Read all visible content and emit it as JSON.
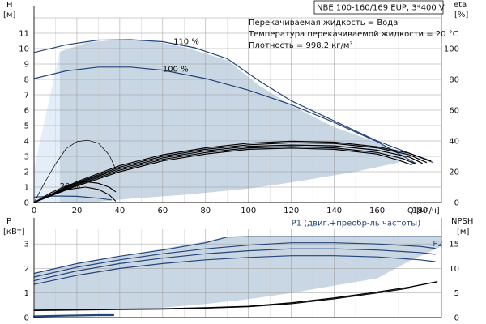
{
  "header": {
    "title": "NBE 100-160/169 EUP, 3*400 V"
  },
  "info": [
    "Перекачиваемая жидкость = Вода",
    "Температура перекачиваемой жидкости = 20 °C",
    "Плотность = 998.2 кг/м³"
  ],
  "colors": {
    "curve": "#24457a",
    "band": "#c9d6e3",
    "light": "#e4eef8",
    "black": "#000000"
  },
  "chart_data": [
    {
      "id": "head",
      "type": "line",
      "xlabel": "Q [м³/ч]",
      "ylabel_name": "H",
      "ylabel_unit": "[м]",
      "y2label_name": "eta",
      "y2label_unit": "[%]",
      "xlim": [
        0,
        190
      ],
      "ylim": [
        0,
        12
      ],
      "y2lim": [
        0,
        120
      ],
      "xticks": [
        0,
        20,
        40,
        60,
        80,
        100,
        120,
        140,
        160,
        180
      ],
      "yticks": [
        0,
        1,
        2,
        3,
        4,
        5,
        6,
        7,
        8,
        9,
        10,
        11
      ],
      "y2ticks": [
        0,
        20,
        40,
        60,
        80,
        100
      ],
      "grid": true,
      "annotations": [
        {
          "text": "110 %",
          "x": 65,
          "y": 10.3
        },
        {
          "text": "100 %",
          "x": 60,
          "y": 8.5
        },
        {
          "text": "20 %",
          "x": 12,
          "y": 0.9
        }
      ],
      "operating_area": [
        [
          12,
          0
        ],
        [
          12,
          2.2
        ],
        [
          12,
          9.8
        ],
        [
          25,
          10.4
        ],
        [
          40,
          10.58
        ],
        [
          55,
          10.5
        ],
        [
          70,
          10.1
        ],
        [
          90,
          9.25
        ],
        [
          105,
          7.6
        ],
        [
          120,
          6.3
        ],
        [
          140,
          4.9
        ],
        [
          160,
          3.9
        ],
        [
          175,
          3.1
        ],
        [
          170,
          2.6
        ],
        [
          150,
          2.0
        ],
        [
          120,
          1.3
        ],
        [
          100,
          0.9
        ],
        [
          70,
          0.5
        ],
        [
          45,
          0.25
        ],
        [
          30,
          0.05
        ],
        [
          12,
          0
        ]
      ],
      "light_area": [
        [
          0,
          0
        ],
        [
          0,
          2.2
        ],
        [
          10,
          8.5
        ],
        [
          12,
          9.8
        ],
        [
          12,
          0
        ]
      ],
      "series": [
        {
          "name": "110 %",
          "color": "#24457a",
          "points": [
            [
              0,
              9.75
            ],
            [
              15,
              10.25
            ],
            [
              30,
              10.55
            ],
            [
              45,
              10.58
            ],
            [
              60,
              10.45
            ],
            [
              75,
              10.05
            ],
            [
              90,
              9.35
            ],
            [
              105,
              7.9
            ],
            [
              120,
              6.6
            ],
            [
              140,
              5.3
            ],
            [
              160,
              4.0
            ],
            [
              175,
              3.2
            ],
            [
              186,
              2.6
            ]
          ]
        },
        {
          "name": "100 %",
          "color": "#24457a",
          "points": [
            [
              0,
              8.05
            ],
            [
              15,
              8.55
            ],
            [
              30,
              8.8
            ],
            [
              45,
              8.8
            ],
            [
              60,
              8.6
            ],
            [
              80,
              8.05
            ],
            [
              100,
              7.3
            ],
            [
              120,
              6.35
            ],
            [
              140,
              5.2
            ],
            [
              160,
              3.95
            ],
            [
              178,
              2.55
            ]
          ]
        },
        {
          "name": "20 %",
          "color": "#24457a",
          "points": [
            [
              0,
              0.35
            ],
            [
              10,
              0.42
            ],
            [
              20,
              0.4
            ],
            [
              30,
              0.28
            ],
            [
              36,
              0.17
            ]
          ]
        },
        {
          "name": "eff-1",
          "color": "#000000",
          "axis": "y2",
          "points": [
            [
              0,
              0
            ],
            [
              20,
              13.5
            ],
            [
              40,
              24
            ],
            [
              60,
              31
            ],
            [
              80,
              35.5
            ],
            [
              100,
              38.5
            ],
            [
              120,
              39.8
            ],
            [
              140,
              39.2
            ],
            [
              160,
              36.2
            ],
            [
              175,
              32
            ],
            [
              185,
              27
            ]
          ]
        },
        {
          "name": "eff-2",
          "color": "#000000",
          "axis": "y2",
          "points": [
            [
              0,
              0
            ],
            [
              20,
              12.8
            ],
            [
              40,
              23
            ],
            [
              60,
              30
            ],
            [
              80,
              34.5
            ],
            [
              100,
              37.5
            ],
            [
              120,
              38.8
            ],
            [
              140,
              38.3
            ],
            [
              160,
              35.5
            ],
            [
              175,
              31
            ],
            [
              183,
              26
            ]
          ]
        },
        {
          "name": "eff-3",
          "color": "#000000",
          "axis": "y2",
          "points": [
            [
              0,
              0
            ],
            [
              20,
              12.2
            ],
            [
              40,
              22
            ],
            [
              60,
              29
            ],
            [
              80,
              33.5
            ],
            [
              100,
              36.5
            ],
            [
              120,
              37.3
            ],
            [
              140,
              36.8
            ],
            [
              160,
              34
            ],
            [
              175,
              29.5
            ],
            [
              181,
              25.5
            ]
          ]
        },
        {
          "name": "eff-4",
          "color": "#000000",
          "axis": "y2",
          "points": [
            [
              0,
              0
            ],
            [
              20,
              11.5
            ],
            [
              40,
              21
            ],
            [
              60,
              28
            ],
            [
              80,
              32.5
            ],
            [
              100,
              35.5
            ],
            [
              120,
              36.3
            ],
            [
              140,
              35.5
            ],
            [
              160,
              32.5
            ],
            [
              172,
              28.5
            ],
            [
              178,
              25
            ]
          ]
        },
        {
          "name": "eff-5",
          "color": "#000000",
          "axis": "y2",
          "points": [
            [
              0,
              0
            ],
            [
              20,
              10.8
            ],
            [
              40,
              20
            ],
            [
              60,
              27
            ],
            [
              80,
              31.5
            ],
            [
              100,
              34.5
            ],
            [
              120,
              35.3
            ],
            [
              140,
              34.5
            ],
            [
              160,
              31.5
            ],
            [
              170,
              27.5
            ],
            [
              176,
              24.5
            ]
          ]
        },
        {
          "name": "eff-low-1",
          "color": "#000000",
          "axis": "y2",
          "width": 0.7,
          "points": [
            [
              0,
              0
            ],
            [
              5,
              13
            ],
            [
              10,
              25
            ],
            [
              15,
              35
            ],
            [
              20,
              39.5
            ],
            [
              25,
              40.5
            ],
            [
              30,
              38.5
            ],
            [
              35,
              31
            ],
            [
              38,
              22
            ]
          ]
        },
        {
          "name": "eff-low-2",
          "color": "#000000",
          "axis": "y2",
          "width": 1.1,
          "points": [
            [
              0,
              0
            ],
            [
              8,
              6.5
            ],
            [
              16,
              11.5
            ],
            [
              24,
              13.5
            ],
            [
              30,
              12.5
            ],
            [
              35,
              10
            ],
            [
              38,
              7
            ]
          ]
        },
        {
          "name": "eff-low-3",
          "color": "#000000",
          "axis": "y2",
          "width": 1.1,
          "points": [
            [
              0,
              0
            ],
            [
              8,
              5
            ],
            [
              16,
              8.5
            ],
            [
              24,
              10
            ],
            [
              30,
              8.5
            ],
            [
              35,
              5
            ],
            [
              38,
              1
            ]
          ]
        }
      ]
    },
    {
      "id": "power",
      "type": "line",
      "ylabel_name": "P",
      "ylabel_unit": "[кВт]",
      "y2label_name": "NPSH",
      "y2label_unit": "[м]",
      "xlim": [
        0,
        190
      ],
      "ylim": [
        0,
        3.6
      ],
      "y2lim": [
        0,
        18
      ],
      "yticks": [
        0,
        1,
        2,
        3
      ],
      "y2ticks": [
        0,
        5,
        10,
        15
      ],
      "grid": true,
      "annotations": [
        {
          "text": "P1 (двиг.+преобр-ль частоты)",
          "x": 120,
          "y": 3.75
        },
        {
          "text": "P2",
          "x": 186,
          "y": 2.9
        }
      ],
      "operating_area": [
        [
          0,
          1.8
        ],
        [
          20,
          2.2
        ],
        [
          40,
          2.5
        ],
        [
          60,
          2.8
        ],
        [
          80,
          3.1
        ],
        [
          90,
          3.3
        ],
        [
          190,
          3.3
        ],
        [
          190,
          2.9
        ],
        [
          175,
          2.3
        ],
        [
          160,
          1.6
        ],
        [
          140,
          1.3
        ],
        [
          120,
          1.0
        ],
        [
          100,
          0.75
        ],
        [
          80,
          0.55
        ],
        [
          60,
          0.4
        ],
        [
          40,
          0.32
        ],
        [
          20,
          0.3
        ],
        [
          0,
          0.3
        ]
      ],
      "series": [
        {
          "name": "P1 (двиг.+преобр-ль частоты)",
          "color": "#24457a",
          "points": [
            [
              0,
              1.8
            ],
            [
              20,
              2.2
            ],
            [
              40,
              2.5
            ],
            [
              60,
              2.75
            ],
            [
              80,
              3.05
            ],
            [
              90,
              3.28
            ],
            [
              100,
              3.3
            ],
            [
              140,
              3.3
            ],
            [
              190,
              3.3
            ]
          ]
        },
        {
          "name": "P1-b",
          "color": "#24457a",
          "points": [
            [
              0,
              1.65
            ],
            [
              20,
              2.05
            ],
            [
              40,
              2.35
            ],
            [
              60,
              2.6
            ],
            [
              80,
              2.8
            ],
            [
              100,
              2.95
            ],
            [
              120,
              3.05
            ],
            [
              140,
              3.05
            ],
            [
              160,
              3.0
            ],
            [
              180,
              2.9
            ],
            [
              187,
              2.82
            ]
          ]
        },
        {
          "name": "P2",
          "color": "#24457a",
          "points": [
            [
              0,
              1.5
            ],
            [
              20,
              1.9
            ],
            [
              40,
              2.2
            ],
            [
              60,
              2.42
            ],
            [
              80,
              2.6
            ],
            [
              100,
              2.72
            ],
            [
              120,
              2.8
            ],
            [
              140,
              2.8
            ],
            [
              160,
              2.75
            ],
            [
              180,
              2.65
            ],
            [
              187,
              2.58
            ]
          ]
        },
        {
          "name": "P2-b",
          "color": "#24457a",
          "points": [
            [
              0,
              1.35
            ],
            [
              20,
              1.72
            ],
            [
              40,
              2.0
            ],
            [
              60,
              2.2
            ],
            [
              80,
              2.35
            ],
            [
              100,
              2.45
            ],
            [
              120,
              2.52
            ],
            [
              140,
              2.52
            ],
            [
              160,
              2.47
            ],
            [
              180,
              2.35
            ],
            [
              187,
              2.28
            ]
          ]
        },
        {
          "name": "NPSH-1",
          "color": "#000000",
          "axis": "y2",
          "width": 1.3,
          "points": [
            [
              0,
              1.5
            ],
            [
              20,
              1.6
            ],
            [
              40,
              1.7
            ],
            [
              60,
              1.8
            ],
            [
              80,
              2.0
            ],
            [
              100,
              2.3
            ],
            [
              120,
              3.0
            ],
            [
              140,
              4.0
            ],
            [
              160,
              5.2
            ],
            [
              175,
              6.2
            ],
            [
              188,
              7.3
            ]
          ]
        },
        {
          "name": "NPSH-2",
          "color": "#000000",
          "axis": "y2",
          "width": 1.0,
          "points": [
            [
              0,
              1.4
            ],
            [
              20,
              1.5
            ],
            [
              40,
              1.6
            ],
            [
              60,
              1.7
            ],
            [
              80,
              1.9
            ],
            [
              100,
              2.2
            ],
            [
              120,
              2.8
            ],
            [
              140,
              3.8
            ],
            [
              160,
              5.0
            ],
            [
              175,
              6.0
            ]
          ]
        },
        {
          "name": "low-P",
          "color": "#24457a",
          "width": 2.2,
          "points": [
            [
              0,
              0.05
            ],
            [
              15,
              0.08
            ],
            [
              30,
              0.1
            ],
            [
              37,
              0.1
            ]
          ]
        }
      ]
    }
  ]
}
